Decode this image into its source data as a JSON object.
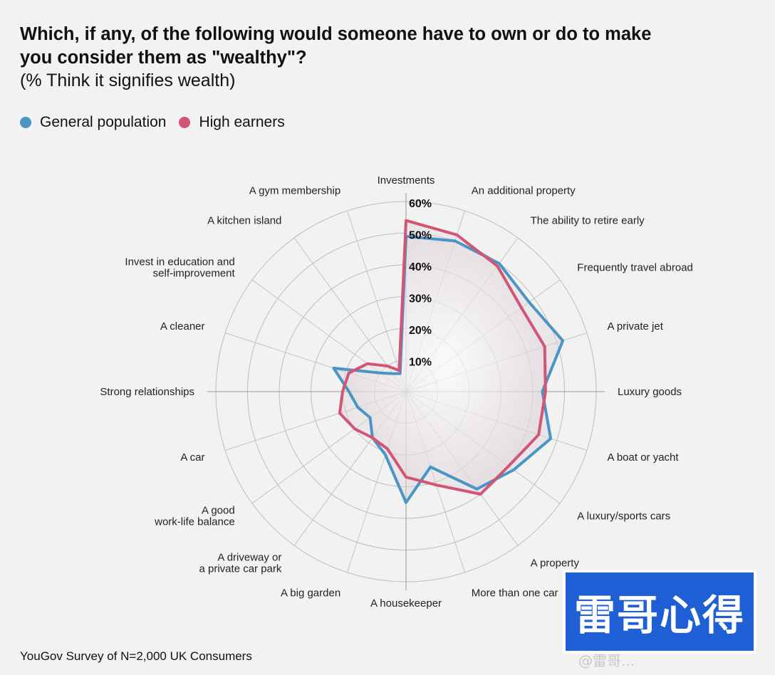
{
  "title": "Which, if any, of the following would someone have to own or do to make you consider them as \"wealthy\"?",
  "subtitle": "(% Think it signifies wealth)",
  "legend": [
    {
      "label": "General population",
      "color": "#4b95c4"
    },
    {
      "label": "High earners",
      "color": "#d35574"
    }
  ],
  "footer": "YouGov Survey of N=2,000 UK Consumers",
  "badge_text": "雷哥心得",
  "watermark_text": "@雷哥...",
  "chart_data": {
    "type": "radar",
    "title": "Which, if any, of the following would someone have to own or do to make you consider them as \"wealthy\"?",
    "subtitle": "(% Think it signifies wealth)",
    "rmax": 60,
    "ticks": [
      10,
      20,
      30,
      40,
      50,
      60
    ],
    "tick_labels": [
      "10%",
      "20%",
      "30%",
      "40%",
      "50%",
      "60%"
    ],
    "categories": [
      "Investments",
      "An additional property",
      "The ability to retire early",
      "Frequently travel abroad",
      "A private jet",
      "Luxury goods",
      "A boat or yacht",
      "A luxury/sports cars",
      "A property",
      "More than one car",
      "A housekeeper",
      "A big garden",
      "A driveway or\na private car park",
      "A good\nwork-life balance",
      "A car",
      "Strong relationships",
      "A cleaner",
      "Invest in education and\nself-improvement",
      "A kitchen island",
      "A gym membership"
    ],
    "series": [
      {
        "name": "General population",
        "color": "#4b95c4",
        "values": [
          49,
          50,
          50,
          48,
          52,
          43,
          48,
          42,
          38,
          25,
          35,
          21,
          18,
          14,
          16,
          18,
          24,
          10,
          7,
          6
        ]
      },
      {
        "name": "High earners",
        "color": "#d35574",
        "values": [
          54,
          52,
          49,
          45,
          46,
          44,
          44,
          40,
          40,
          31,
          27,
          19,
          18,
          20,
          22,
          20,
          19,
          15,
          10,
          7
        ]
      }
    ]
  }
}
